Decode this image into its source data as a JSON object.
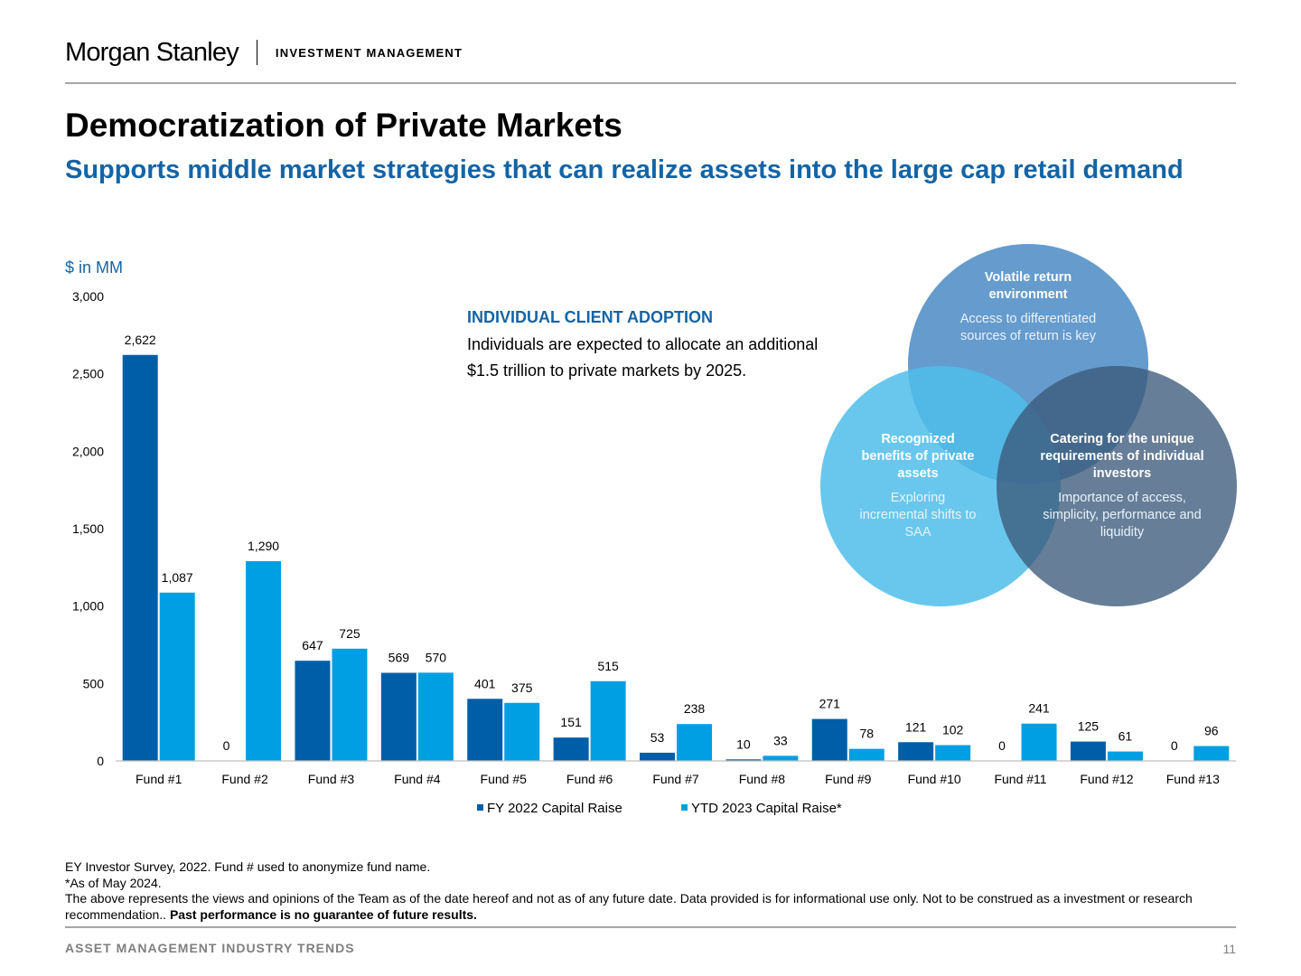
{
  "header": {
    "logo": "Morgan Stanley",
    "division": "INVESTMENT MANAGEMENT"
  },
  "slide": {
    "title": "Democratization of Private Markets",
    "subtitle": "Supports middle market strategies that can realize assets into the large cap retail demand"
  },
  "callout": {
    "heading": "INDIVIDUAL CLIENT ADOPTION",
    "body_line1": "Individuals are expected to allocate an additional",
    "body_line2": "$1.5 trillion to private markets by 2025."
  },
  "chart_data": {
    "type": "bar",
    "unit_label": "$ in MM",
    "categories": [
      "Fund #1",
      "Fund #2",
      "Fund #3",
      "Fund #4",
      "Fund #5",
      "Fund #6",
      "Fund #7",
      "Fund #8",
      "Fund #9",
      "Fund #10",
      "Fund #11",
      "Fund #12",
      "Fund #13"
    ],
    "series": [
      {
        "name": "FY 2022 Capital Raise",
        "color": "#005ea8",
        "values": [
          2622,
          0,
          647,
          569,
          401,
          151,
          53,
          10,
          271,
          121,
          0,
          125,
          0
        ]
      },
      {
        "name": "YTD 2023 Capital Raise*",
        "color": "#009fe3",
        "values": [
          1087,
          1290,
          725,
          570,
          375,
          515,
          238,
          33,
          78,
          102,
          241,
          61,
          96
        ]
      }
    ],
    "ylim": [
      0,
      3000
    ],
    "yticks": [
      0,
      500,
      1000,
      1500,
      2000,
      2500,
      3000
    ],
    "ytick_labels": [
      "0",
      "500",
      "1,000",
      "1,500",
      "2,000",
      "2,500",
      "3,000"
    ],
    "grid": false,
    "legend_position": "bottom"
  },
  "venn": {
    "top": {
      "heading": "Volatile return environment",
      "body": "Access to differentiated sources of return is key",
      "color": "#4a8ac4"
    },
    "left": {
      "heading": "Recognized benefits of private assets",
      "body": "Exploring incremental shifts to SAA",
      "color": "#4fbdea"
    },
    "right": {
      "heading": "Catering for the unique requirements of individual investors",
      "body": "Importance of access, simplicity, performance and liquidity",
      "color": "#3b5a7a"
    }
  },
  "footnotes": {
    "line1": "EY Investor Survey, 2022. Fund # used to anonymize fund name.",
    "line2": "*As of May 2024.",
    "line3": "The above represents the views and opinions of the Team as of the date hereof and not as of any future date. Data provided is for informational use only. Not to be construed as a investment or research recommendation..",
    "bold": "Past performance is no guarantee of future results."
  },
  "footer": {
    "section": "ASSET MANAGEMENT INDUSTRY TRENDS",
    "page_number": "11"
  }
}
